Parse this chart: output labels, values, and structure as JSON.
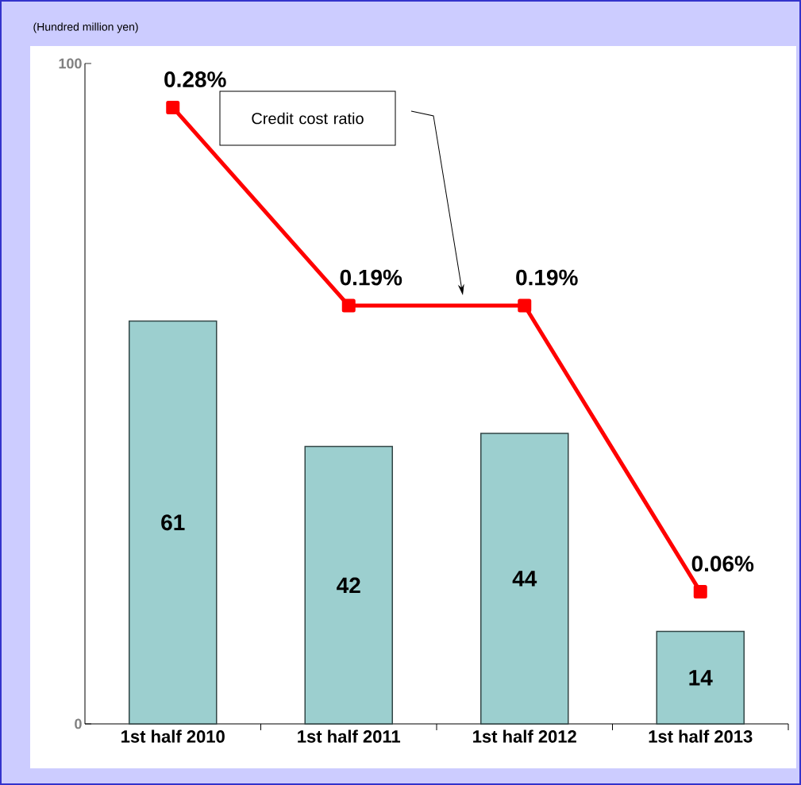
{
  "chart_data": {
    "type": "bar",
    "ylabel": "(Hundred million yen)",
    "categories": [
      "1st half 2010",
      "1st half 2011",
      "1st half 2012",
      "1st half 2013"
    ],
    "ylim": [
      0,
      100
    ],
    "yticks": [
      0,
      100
    ],
    "y2lim": [
      0,
      0.3
    ],
    "marker": "square",
    "annotations": [
      "Credit cost ratio"
    ],
    "series": [
      {
        "type": "bar",
        "color": "#9ccfcf",
        "values": [
          61,
          42,
          44,
          14
        ],
        "value_labels": [
          "61",
          "42",
          "44",
          "14"
        ]
      },
      {
        "type": "line",
        "axis": "y2",
        "color": "#ff0000",
        "values": [
          0.28,
          0.19,
          0.19,
          0.06
        ],
        "value_labels": [
          "0.28%",
          "0.19%",
          "0.19%",
          "0.06%"
        ]
      }
    ]
  }
}
